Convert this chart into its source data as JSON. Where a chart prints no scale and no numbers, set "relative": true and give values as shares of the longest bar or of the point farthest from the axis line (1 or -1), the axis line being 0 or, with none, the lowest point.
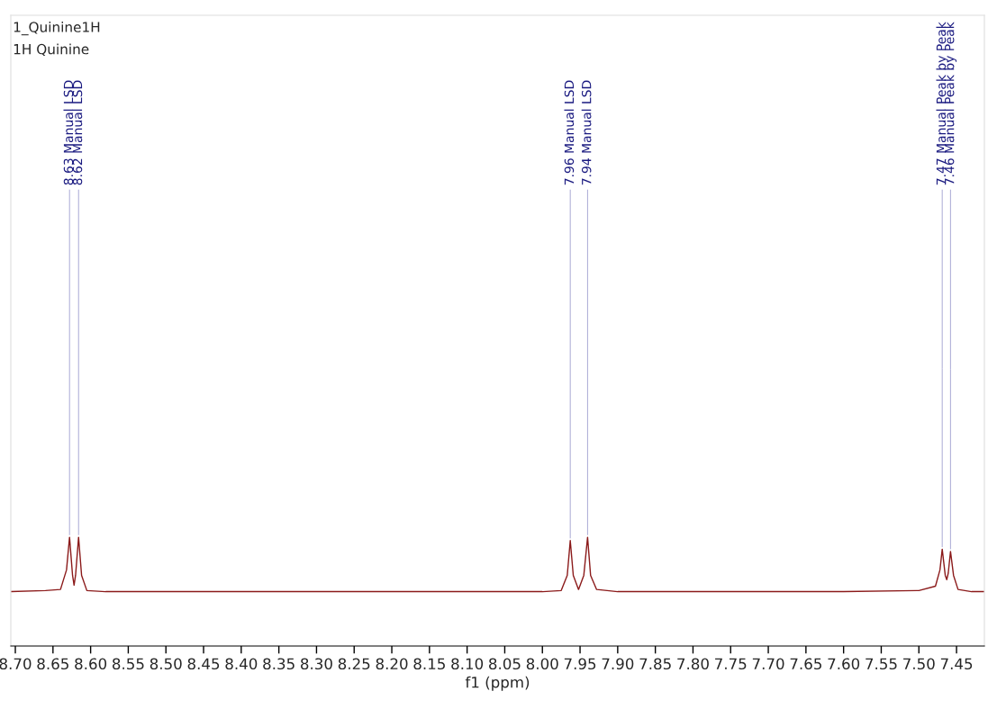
{
  "chart_data": {
    "type": "line",
    "relative": true,
    "title": "1_Quinine1H",
    "subtitle": "1H Quinine",
    "xlabel": "f1 (ppm)",
    "xlim": [
      8.706,
      7.413
    ],
    "xticks": [
      {
        "value": 8.7,
        "label": "8.70"
      },
      8.65,
      {
        "value": 8.6,
        "label": "8.60"
      },
      8.55,
      {
        "value": 8.5,
        "label": "8.50"
      },
      8.45,
      {
        "value": 8.4,
        "label": "8.40"
      },
      8.35,
      {
        "value": 8.3,
        "label": "8.30"
      },
      8.25,
      {
        "value": 8.2,
        "label": "8.20"
      },
      8.15,
      {
        "value": 8.1,
        "label": "8.10"
      },
      8.05,
      {
        "value": 8.0,
        "label": "8.00"
      },
      7.95,
      {
        "value": 7.9,
        "label": "7.90"
      },
      7.85,
      {
        "value": 7.8,
        "label": "7.80"
      },
      7.75,
      {
        "value": 7.7,
        "label": "7.70"
      },
      7.65,
      {
        "value": 7.6,
        "label": "7.60"
      },
      7.55,
      {
        "value": 7.5,
        "label": "7.50"
      },
      7.45
    ],
    "grid": false,
    "legend": false,
    "marker": "none",
    "line_style": "solid",
    "series": [
      {
        "color": "#8b1a1a",
        "x": [
          8.706,
          8.66,
          8.64,
          8.632,
          8.628,
          8.624,
          8.622,
          8.62,
          8.616,
          8.612,
          8.605,
          8.58,
          8.0,
          7.975,
          7.967,
          7.963,
          7.959,
          7.952,
          7.945,
          7.94,
          7.936,
          7.928,
          7.9,
          7.6,
          7.5,
          7.478,
          7.472,
          7.469,
          7.465,
          7.463,
          7.461,
          7.458,
          7.454,
          7.448,
          7.43,
          7.413
        ],
        "values": [
          0.5,
          0.51,
          0.52,
          0.7,
          1.0,
          0.65,
          0.56,
          0.65,
          1.0,
          0.65,
          0.51,
          0.5,
          0.5,
          0.51,
          0.65,
          0.97,
          0.65,
          0.52,
          0.65,
          1.0,
          0.65,
          0.52,
          0.5,
          0.5,
          0.51,
          0.55,
          0.7,
          0.89,
          0.65,
          0.61,
          0.67,
          0.87,
          0.65,
          0.52,
          0.5,
          0.5
        ]
      }
    ],
    "annotations": [
      {
        "text": "8.63 Manual LSD",
        "x": 8.628,
        "y": 1.0
      },
      {
        "text": "8.62 Manual LSD",
        "x": 8.616,
        "y": 1.0
      },
      {
        "text": "7.96 Manual LSD",
        "x": 7.963,
        "y": 0.97
      },
      {
        "text": "7.94 Manual LSD",
        "x": 7.94,
        "y": 1.0
      },
      {
        "text": "7.47 Manual Peak by Peak",
        "x": 7.469,
        "y": 0.89
      },
      {
        "text": "7.46 Manual Peak by Peak",
        "x": 7.458,
        "y": 0.87
      }
    ]
  }
}
